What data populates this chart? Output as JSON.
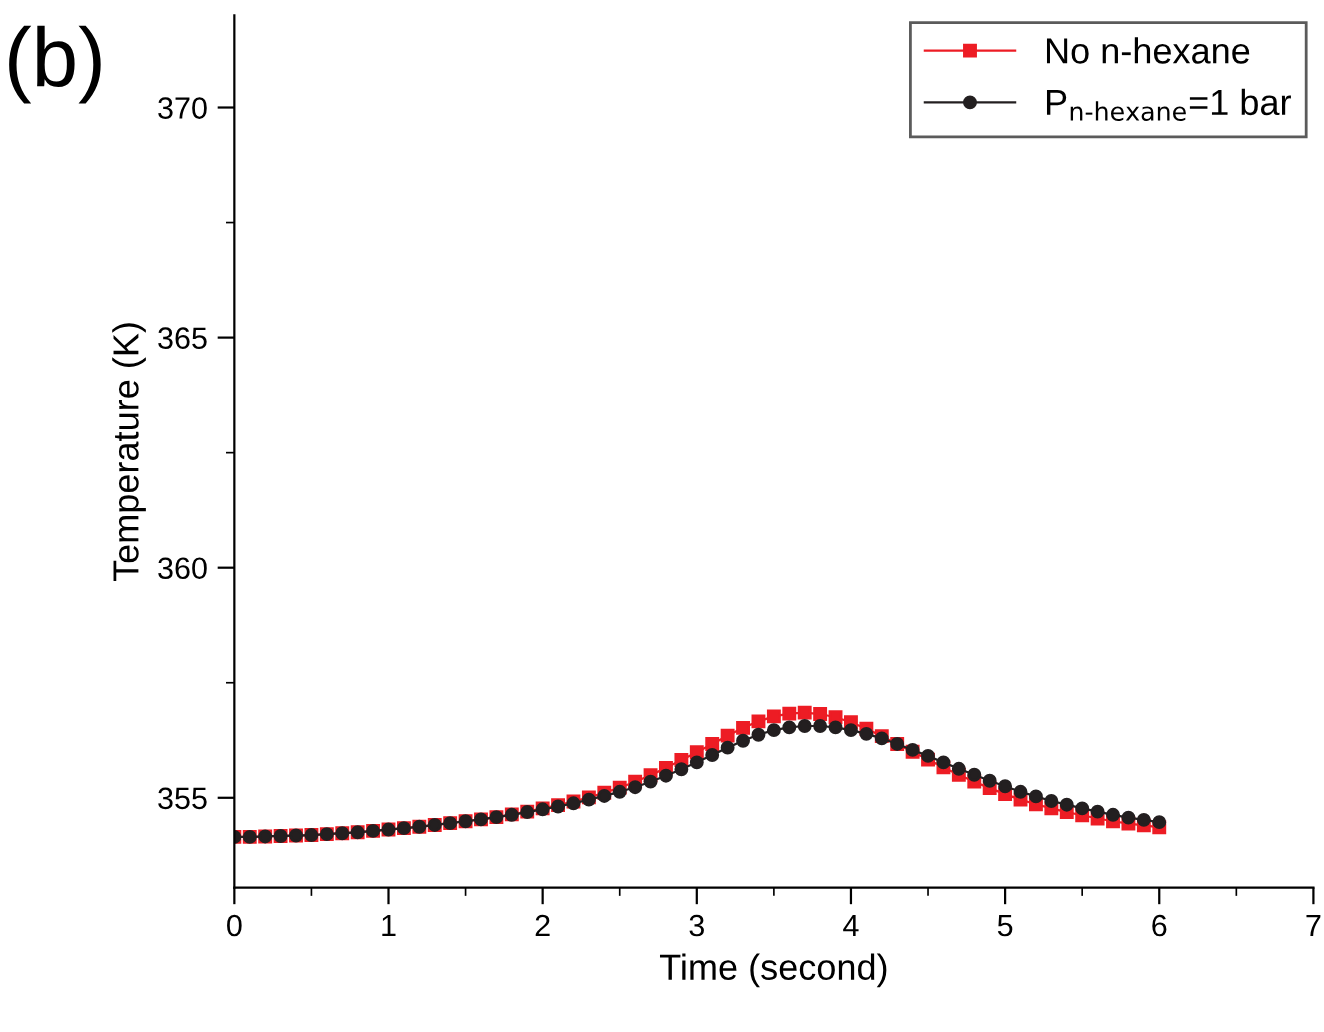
{
  "chart_data": {
    "type": "line",
    "title": "(b)",
    "xlabel": "Time (second)",
    "ylabel": "Temperature (K)",
    "x": [
      0.0,
      0.1,
      0.2,
      0.3,
      0.4,
      0.5,
      0.6,
      0.7,
      0.8,
      0.9,
      1.0,
      1.1,
      1.2,
      1.3,
      1.4,
      1.5,
      1.6,
      1.7,
      1.8,
      1.9,
      2.0,
      2.1,
      2.2,
      2.3,
      2.4,
      2.5,
      2.6,
      2.7,
      2.8,
      2.9,
      3.0,
      3.1,
      3.2,
      3.3,
      3.4,
      3.5,
      3.6,
      3.7,
      3.8,
      3.9,
      4.0,
      4.1,
      4.2,
      4.3,
      4.4,
      4.5,
      4.6,
      4.7,
      4.8,
      4.9,
      5.0,
      5.1,
      5.2,
      5.3,
      5.4,
      5.5,
      5.6,
      5.7,
      5.8,
      5.9,
      6.0
    ],
    "series": [
      {
        "name": "No n-hexane",
        "color": "#ed1c24",
        "marker": "square",
        "values": [
          354.15,
          354.15,
          354.16,
          354.17,
          354.18,
          354.19,
          354.21,
          354.23,
          354.25,
          354.28,
          354.31,
          354.34,
          354.37,
          354.41,
          354.45,
          354.49,
          354.53,
          354.58,
          354.64,
          354.7,
          354.77,
          354.84,
          354.92,
          355.01,
          355.11,
          355.22,
          355.35,
          355.49,
          355.65,
          355.82,
          355.99,
          356.17,
          356.35,
          356.52,
          356.66,
          356.77,
          356.83,
          356.85,
          356.82,
          356.75,
          356.64,
          356.5,
          356.34,
          356.17,
          356.0,
          355.83,
          355.66,
          355.5,
          355.35,
          355.21,
          355.08,
          354.96,
          354.86,
          354.77,
          354.69,
          354.62,
          354.55,
          354.49,
          354.44,
          354.4,
          354.36
        ]
      },
      {
        "name": "P$_{n-hexane}$=1 bar",
        "color": "#231f20",
        "marker": "circle",
        "values": [
          354.15,
          354.15,
          354.16,
          354.17,
          354.18,
          354.19,
          354.21,
          354.23,
          354.25,
          354.28,
          354.31,
          354.34,
          354.37,
          354.41,
          354.45,
          354.49,
          354.53,
          354.58,
          354.63,
          354.69,
          354.75,
          354.81,
          354.88,
          354.96,
          355.04,
          355.13,
          355.23,
          355.35,
          355.48,
          355.62,
          355.77,
          355.93,
          356.09,
          356.24,
          356.37,
          356.47,
          356.53,
          356.56,
          356.56,
          356.53,
          356.47,
          356.39,
          356.29,
          356.17,
          356.04,
          355.91,
          355.77,
          355.63,
          355.5,
          355.37,
          355.25,
          355.13,
          355.03,
          354.93,
          354.85,
          354.77,
          354.7,
          354.63,
          354.57,
          354.52,
          354.47
        ]
      }
    ],
    "xlim": [
      0,
      7
    ],
    "ylim": [
      353.05,
      372
    ],
    "xticks": [
      0,
      {
        "value": 0.5,
        "label": null
      },
      1,
      {
        "value": 1.5,
        "label": null
      },
      2,
      {
        "value": 2.5,
        "label": null
      },
      3,
      {
        "value": 3.5,
        "label": null
      },
      4,
      {
        "value": 4.5,
        "label": null
      },
      5,
      {
        "value": 5.5,
        "label": null
      },
      6,
      {
        "value": 6.5,
        "label": null
      },
      7
    ],
    "yticks": [
      355,
      {
        "value": 357.5,
        "label": null
      },
      360,
      {
        "value": 362.5,
        "label": null
      },
      365,
      {
        "value": 367.5,
        "label": null
      },
      370
    ],
    "grid": false,
    "legend": "top right",
    "line_style": "solid"
  }
}
